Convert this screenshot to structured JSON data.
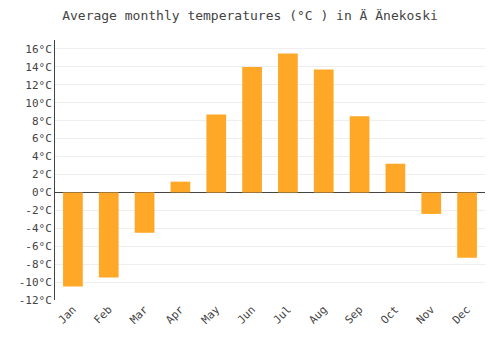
{
  "chart_data": {
    "type": "bar",
    "title": "Average monthly temperatures (°C ) in Ä Änekoski",
    "categories": [
      "Jan",
      "Feb",
      "Mar",
      "Apr",
      "May",
      "Jun",
      "Jul",
      "Aug",
      "Sep",
      "Oct",
      "Nov",
      "Dec"
    ],
    "values": [
      -10.5,
      -9.5,
      -4.5,
      1.2,
      8.7,
      14.0,
      15.5,
      13.7,
      8.5,
      3.2,
      -2.4,
      -7.3
    ],
    "color": "#FFA726",
    "ylim": [
      -12,
      17
    ],
    "yticks": [
      {
        "value": -12,
        "label": "-12°C"
      },
      {
        "value": -10,
        "label": "-10°C"
      },
      {
        "value": -8,
        "label": "-8°C"
      },
      {
        "value": -6,
        "label": "-6°C"
      },
      {
        "value": -4,
        "label": "-4°C"
      },
      {
        "value": -2,
        "label": "-2°C"
      },
      {
        "value": 0,
        "label": "0°C"
      },
      {
        "value": 2,
        "label": "2°C"
      },
      {
        "value": 4,
        "label": "4°C"
      },
      {
        "value": 6,
        "label": "6°C"
      },
      {
        "value": 8,
        "label": "8°C"
      },
      {
        "value": 10,
        "label": "10°C"
      },
      {
        "value": 12,
        "label": "12°C"
      },
      {
        "value": 14,
        "label": "14°C"
      },
      {
        "value": 16,
        "label": "16°C"
      }
    ],
    "grid": true
  }
}
